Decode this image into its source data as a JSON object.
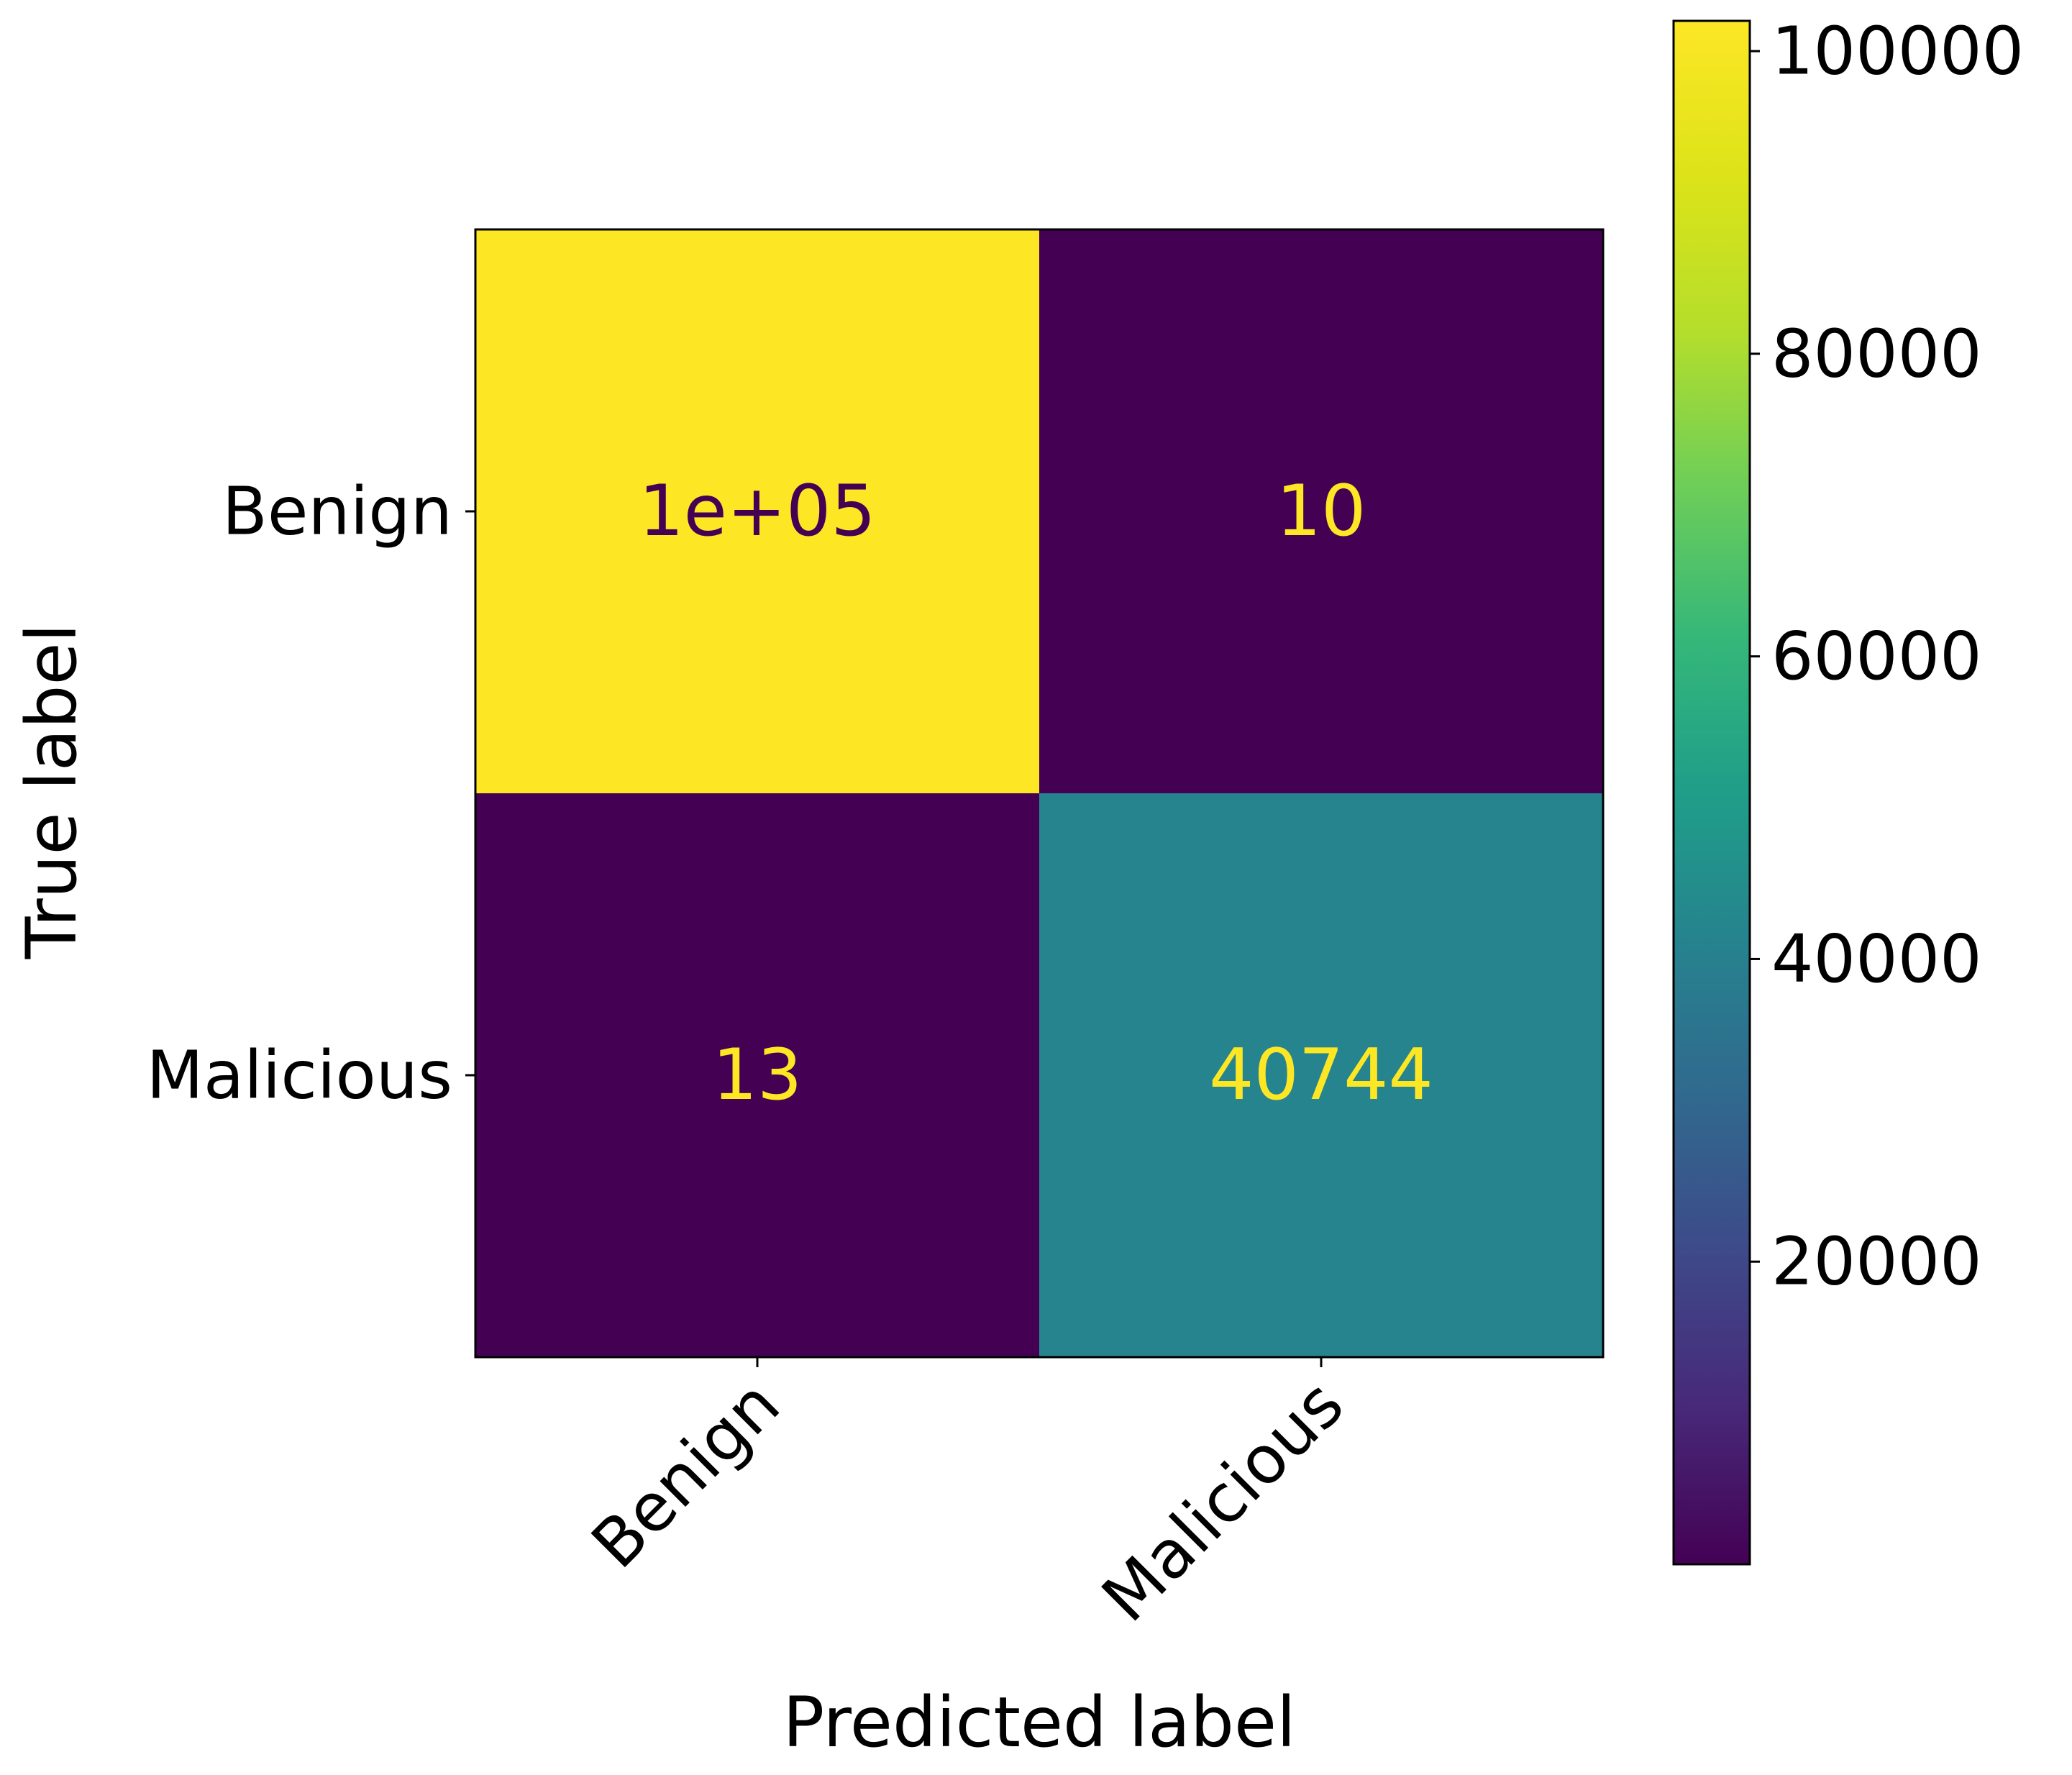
{
  "chart_data": {
    "type": "heatmap",
    "title": "",
    "xlabel": "Predicted label",
    "ylabel": "True label",
    "x_categories": [
      "Benign",
      "Malicious"
    ],
    "y_categories": [
      "Benign",
      "Malicious"
    ],
    "values": [
      [
        100000,
        10
      ],
      [
        13,
        40744
      ]
    ],
    "cell_labels": [
      [
        "1e+05",
        "10"
      ],
      [
        "13",
        "40744"
      ]
    ],
    "colormap": "viridis",
    "colorbar": {
      "range": [
        0,
        102000
      ],
      "ticks": [
        20000,
        40000,
        60000,
        80000,
        100000
      ],
      "tick_labels": [
        "20000",
        "40000",
        "60000",
        "80000",
        "100000"
      ]
    },
    "grid": false,
    "legend": "none"
  },
  "colors": {
    "low": "#440154",
    "high": "#fde725",
    "text_on_dark": "#fde725",
    "text_on_light": "#440154"
  }
}
